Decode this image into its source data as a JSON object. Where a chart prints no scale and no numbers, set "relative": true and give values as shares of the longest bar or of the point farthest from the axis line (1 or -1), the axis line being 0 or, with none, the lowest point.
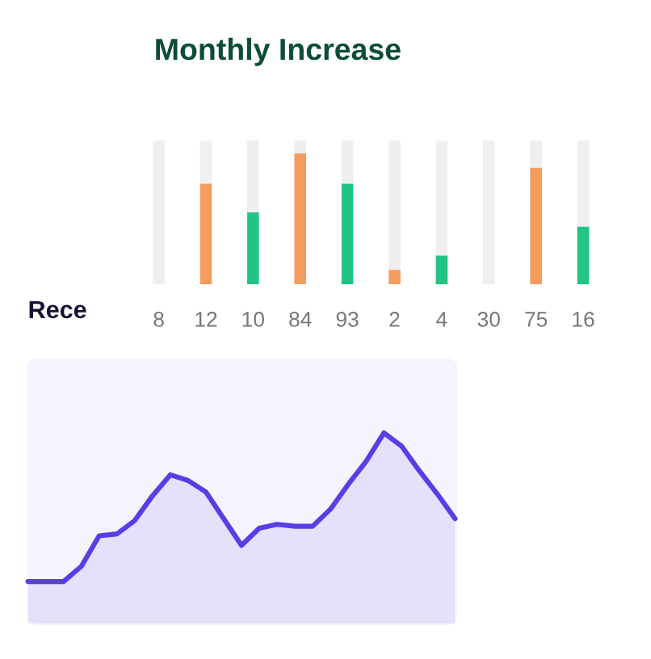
{
  "chart_data": [
    {
      "type": "bar",
      "title": "Monthly Increase",
      "categories": [
        "8",
        "12",
        "10",
        "84",
        "93",
        "2",
        "4",
        "30",
        "75",
        "16"
      ],
      "stacked": true,
      "relative": true,
      "series": [
        {
          "colors": [
            "#f39c5f",
            "#f39c5f",
            "#22c484",
            "#f39c5f",
            "#22c484",
            "#f39c5f",
            "#22c484",
            "#22c484",
            "#f39c5f",
            "#22c484"
          ],
          "values": [
            0,
            0.7,
            0.5,
            0.91,
            0.7,
            0.1,
            0.2,
            0,
            0.81,
            0.4
          ]
        },
        {
          "color": "#efefef",
          "values": [
            1,
            0.3,
            0.5,
            0.09,
            0.3,
            0.9,
            0.8,
            1,
            0.19,
            0.6
          ]
        }
      ]
    },
    {
      "type": "area",
      "title": "Rece",
      "relative": true,
      "categories": [
        null,
        null,
        null,
        null,
        null,
        null,
        null,
        null,
        null,
        null,
        null,
        null,
        null,
        null,
        null,
        null,
        null,
        null,
        null,
        null,
        null,
        null,
        null,
        null,
        null
      ],
      "color": "#5b3de8",
      "values": [
        0.22,
        0.22,
        0.22,
        0.3,
        0.46,
        0.47,
        0.54,
        0.67,
        0.78,
        0.75,
        0.69,
        0.55,
        0.41,
        0.5,
        0.52,
        0.51,
        0.51,
        0.6,
        0.73,
        0.85,
        1,
        0.93,
        0.8,
        0.68,
        0.55
      ]
    }
  ]
}
